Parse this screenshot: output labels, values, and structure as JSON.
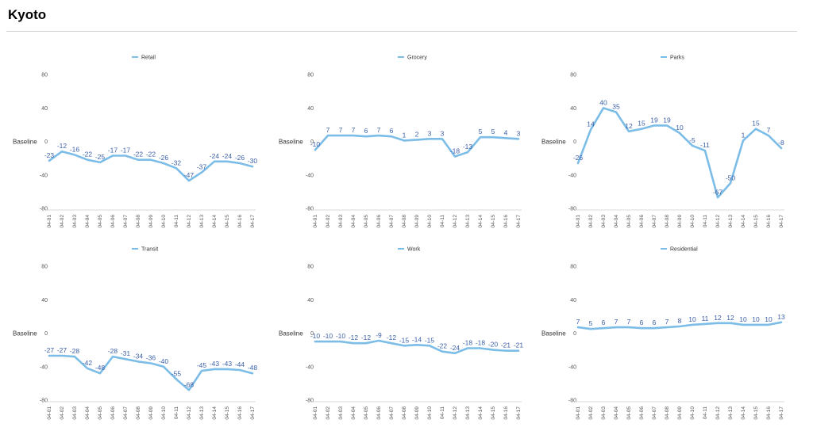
{
  "page": {
    "title": "Kyoto"
  },
  "colors": {
    "line": "#7cbde8",
    "label": "#3b5fa8"
  },
  "chart_data": [
    {
      "type": "line",
      "ylabel": "Baseline",
      "ylim": [
        -80,
        80
      ],
      "yticks": [
        80,
        40,
        0,
        -40,
        -80
      ],
      "legend_position": "top-center",
      "grid": false,
      "x": [
        "04-01",
        "04-02",
        "04-03",
        "04-04",
        "04-05",
        "04-06",
        "04-07",
        "04-08",
        "04-09",
        "04-10",
        "04-11",
        "04-12",
        "04-13",
        "04-14",
        "04-15",
        "04-16",
        "04-17"
      ],
      "series": [
        {
          "name": "Retail",
          "values": [
            -23,
            -12,
            -16,
            -22,
            -25,
            -17,
            -17,
            -22,
            -22,
            -26,
            -32,
            -47,
            -37,
            -24,
            -24,
            -26,
            -30
          ]
        }
      ]
    },
    {
      "type": "line",
      "ylabel": "Baseline",
      "ylim": [
        -80,
        80
      ],
      "yticks": [
        80,
        40,
        0,
        -40,
        -80
      ],
      "legend_position": "top-center",
      "grid": false,
      "x": [
        "04-01",
        "04-02",
        "04-03",
        "04-04",
        "04-05",
        "04-06",
        "04-07",
        "04-08",
        "04-09",
        "04-10",
        "04-11",
        "04-12",
        "04-13",
        "04-14",
        "04-15",
        "04-16",
        "04-17"
      ],
      "series": [
        {
          "name": "Grocery",
          "values": [
            -10,
            7,
            7,
            7,
            6,
            7,
            6,
            1,
            2,
            3,
            3,
            -18,
            -13,
            5,
            5,
            4,
            3
          ]
        }
      ]
    },
    {
      "type": "line",
      "ylabel": "Baseline",
      "ylim": [
        -80,
        80
      ],
      "yticks": [
        80,
        40,
        0,
        -40,
        -80
      ],
      "legend_position": "top-center",
      "grid": false,
      "x": [
        "04-01",
        "04-02",
        "04-03",
        "04-04",
        "04-05",
        "04-06",
        "04-07",
        "04-08",
        "04-09",
        "04-10",
        "04-11",
        "04-12",
        "04-13",
        "04-14",
        "04-15",
        "04-16",
        "04-17"
      ],
      "series": [
        {
          "name": "Parks",
          "values": [
            -26,
            14,
            40,
            35,
            12,
            15,
            19,
            19,
            10,
            -5,
            -11,
            -67,
            -50,
            1,
            15,
            7,
            -8
          ]
        }
      ]
    },
    {
      "type": "line",
      "ylabel": "Baseline",
      "ylim": [
        -80,
        80
      ],
      "yticks": [
        80,
        40,
        0,
        -40,
        -80
      ],
      "legend_position": "top-center",
      "grid": false,
      "x": [
        "04-01",
        "04-02",
        "04-03",
        "04-04",
        "04-05",
        "04-06",
        "04-07",
        "04-08",
        "04-09",
        "04-10",
        "04-11",
        "04-12",
        "04-13",
        "04-14",
        "04-15",
        "04-16",
        "04-17"
      ],
      "series": [
        {
          "name": "Transit",
          "values": [
            -27,
            -27,
            -28,
            -42,
            -48,
            -28,
            -31,
            -34,
            -36,
            -40,
            -55,
            -68,
            -45,
            -43,
            -43,
            -44,
            -48
          ]
        }
      ]
    },
    {
      "type": "line",
      "ylabel": "Baseline",
      "ylim": [
        -80,
        80
      ],
      "yticks": [
        80,
        40,
        0,
        -40,
        -80
      ],
      "legend_position": "top-center",
      "grid": false,
      "x": [
        "04-01",
        "04-02",
        "04-03",
        "04-04",
        "04-05",
        "04-06",
        "04-07",
        "04-08",
        "04-09",
        "04-10",
        "04-11",
        "04-12",
        "04-13",
        "04-14",
        "04-15",
        "04-16",
        "04-17"
      ],
      "series": [
        {
          "name": "Work",
          "values": [
            -10,
            -10,
            -10,
            -12,
            -12,
            -9,
            -12,
            -15,
            -14,
            -15,
            -22,
            -24,
            -18,
            -18,
            -20,
            -21,
            -21
          ]
        }
      ]
    },
    {
      "type": "line",
      "ylabel": "Baseline",
      "ylim": [
        -80,
        80
      ],
      "yticks": [
        80,
        40,
        0,
        -40,
        -80
      ],
      "legend_position": "top-center",
      "grid": false,
      "x": [
        "04-01",
        "04-02",
        "04-03",
        "04-04",
        "04-05",
        "04-06",
        "04-07",
        "04-08",
        "04-09",
        "04-10",
        "04-11",
        "04-12",
        "04-13",
        "04-14",
        "04-15",
        "04-16",
        "04-17"
      ],
      "series": [
        {
          "name": "Residential",
          "values": [
            7,
            5,
            6,
            7,
            7,
            6,
            6,
            7,
            8,
            10,
            11,
            12,
            12,
            10,
            10,
            10,
            13
          ]
        }
      ]
    }
  ]
}
